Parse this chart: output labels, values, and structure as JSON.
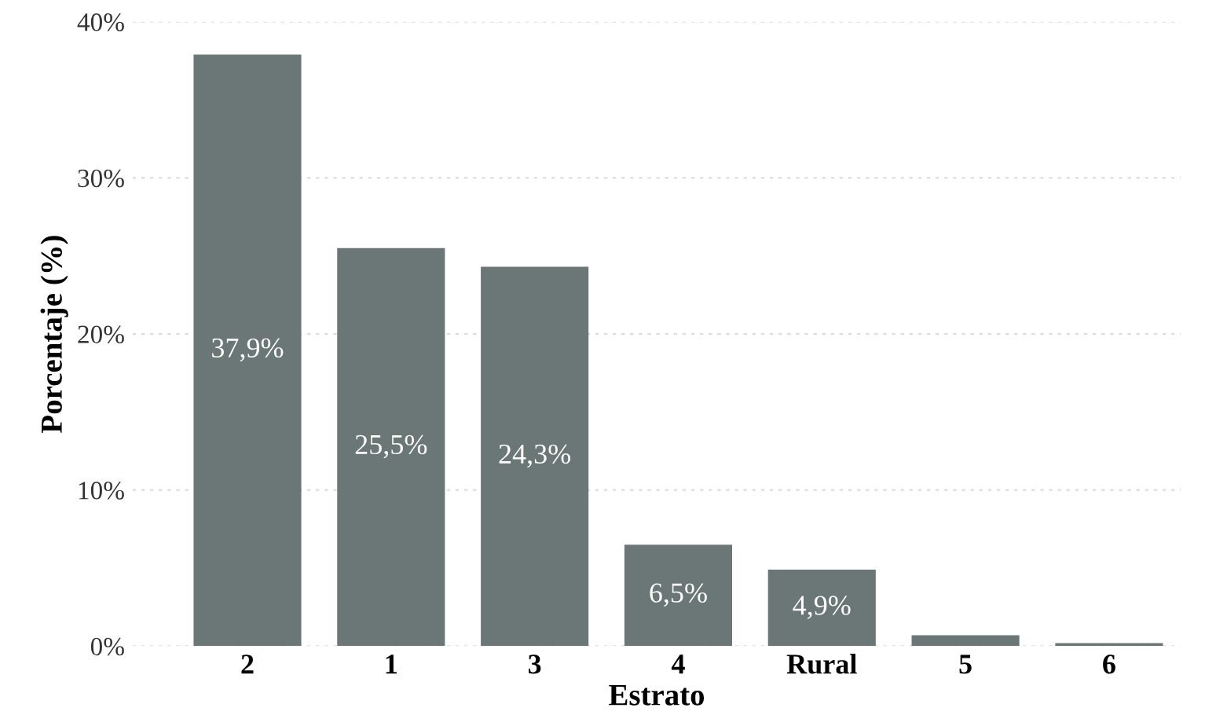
{
  "chart_data": {
    "type": "bar",
    "xlabel": "Estrato",
    "ylabel": "Porcentaje (%)",
    "categories": [
      "2",
      "1",
      "3",
      "4",
      "Rural",
      "5",
      "6"
    ],
    "values": [
      37.9,
      25.5,
      24.3,
      6.5,
      4.9,
      0.7,
      0.2
    ],
    "value_labels": [
      "37,9%",
      "25,5%",
      "24,3%",
      "6,5%",
      "4,9%",
      null,
      null
    ],
    "color": "#6b7677",
    "ylim": [
      0,
      40
    ],
    "yticks": [
      {
        "value": 0,
        "label": "0%"
      },
      {
        "value": 10,
        "label": "10%"
      },
      {
        "value": 20,
        "label": "20%"
      },
      {
        "value": 30,
        "label": "30%"
      },
      {
        "value": 40,
        "label": "40%"
      }
    ],
    "grid": "y"
  }
}
